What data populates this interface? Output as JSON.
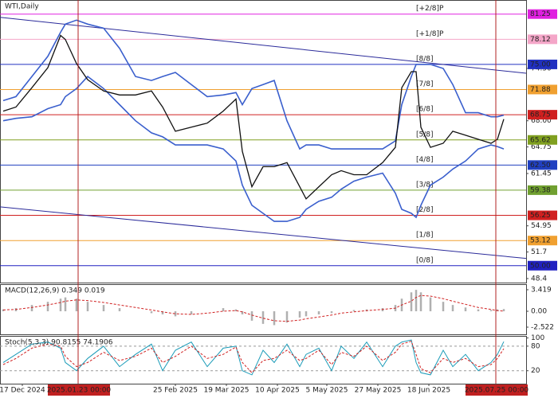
{
  "chart_data": [
    {
      "type": "line",
      "title": "WTI,Daily",
      "xlim": [
        0,
        165
      ],
      "ylim": [
        47.9,
        83.0
      ],
      "xticks": [
        {
          "value": 7,
          "label": "17 Dec 2024"
        },
        {
          "value": 24.5,
          "label": "2025.01.23 00:00",
          "highlight": true
        },
        {
          "value": 55,
          "label": "25 Feb 2025"
        },
        {
          "value": 71,
          "label": "19 Mar 2025"
        },
        {
          "value": 87,
          "label": "10 Apr 2025"
        },
        {
          "value": 102.5,
          "label": "5 May 2025"
        },
        {
          "value": 118.5,
          "label": "27 May 2025"
        },
        {
          "value": 134.5,
          "label": "18 Jun 2025"
        },
        {
          "value": 155.5,
          "label": "2025.07.25 00:00",
          "highlight": true
        }
      ],
      "yticks": [
        {
          "value": 74.5,
          "label": "74.50"
        },
        {
          "value": 68,
          "label": "68.00"
        },
        64.75,
        61.45,
        54.95,
        51.7,
        48.4
      ],
      "levels": [
        {
          "value": 81.25,
          "axis_label": "81.25",
          "label": "[+2/8]P",
          "color": "#e020e0"
        },
        {
          "value": 78.12,
          "axis_label": "78.12",
          "label": "[+1/8]P",
          "color": "#f4a6c8"
        },
        {
          "value": 75,
          "axis_label": "75.00",
          "label": "[8/8]",
          "color": "#2030c0"
        },
        {
          "value": 71.88,
          "axis_label": "71.88",
          "label": "[7/8]",
          "color": "#f0a030"
        },
        {
          "value": 68.75,
          "axis_label": "68.75",
          "label": "[6/8]",
          "color": "#d02020"
        },
        {
          "value": 65.62,
          "axis_label": "65.62",
          "label": "[5/8]",
          "color": "#80a020"
        },
        {
          "value": 62.5,
          "axis_label": "62.50",
          "label": "[4/8]",
          "color": "#2040c0"
        },
        {
          "value": 59.38,
          "axis_label": "59.38",
          "label": "[3/8]",
          "color": "#70a030"
        },
        {
          "value": 56.25,
          "axis_label": "56.25",
          "label": "[2/8]",
          "color": "#d02020"
        },
        {
          "value": 53.12,
          "axis_label": "53.12",
          "label": "[1/8]",
          "color": "#f0a030"
        },
        {
          "value": 50,
          "axis_label": "50.00",
          "label": "[0/8]",
          "color": "#2020c0"
        }
      ],
      "trendlines": [
        {
          "x": [
            0,
            165
          ],
          "y": [
            80.85,
            73.9
          ],
          "color": "#2a2a9a"
        },
        {
          "x": [
            0,
            165
          ],
          "y": [
            57.3,
            50.9
          ],
          "color": "#2a2a9a"
        }
      ],
      "x": [
        1,
        5,
        10,
        15,
        19,
        20.5,
        24,
        27.5,
        32.5,
        37.5,
        42.5,
        47.5,
        51,
        55,
        60,
        65,
        70,
        74,
        76,
        79,
        82.5,
        86,
        90,
        94,
        96,
        100,
        104,
        107,
        111,
        115,
        120,
        124,
        126,
        129,
        130.5,
        132,
        135,
        139,
        142,
        146,
        150,
        154,
        156,
        158
      ],
      "series": [
        {
          "name": "Upper band",
          "color": "#3a5fcd",
          "values": [
            70.5,
            71,
            73.5,
            76,
            79,
            80,
            80.5,
            80,
            79.5,
            77,
            73.5,
            73,
            73.5,
            74,
            72.5,
            71,
            71.2,
            71.5,
            70,
            72,
            72.5,
            73,
            68,
            64.5,
            65,
            65,
            64.5,
            64.5,
            64.5,
            64.5,
            64.5,
            65.5,
            70,
            73.5,
            75,
            75,
            75,
            74.5,
            72.5,
            69,
            69,
            68.5,
            68.5,
            68.7
          ]
        },
        {
          "name": "Lower band",
          "color": "#3a5fcd",
          "values": [
            68,
            68.3,
            68.5,
            69.5,
            70,
            71,
            72,
            73.5,
            72,
            70,
            68,
            66.5,
            66,
            65,
            65,
            65,
            64.5,
            63,
            60,
            57.5,
            56.5,
            55.5,
            55.5,
            56,
            57,
            58,
            58.5,
            59.5,
            60.5,
            61,
            61.5,
            59,
            57,
            56.5,
            56,
            57.5,
            60,
            61,
            62,
            63,
            64.5,
            65,
            64.8,
            64.5
          ]
        },
        {
          "name": "Close",
          "color": "#111111",
          "values": [
            69.2,
            69.7,
            72.1,
            74.6,
            78.6,
            78.1,
            75.1,
            73.1,
            71.7,
            71.2,
            71.2,
            71.7,
            69.7,
            66.7,
            67.2,
            67.7,
            69.2,
            70.7,
            64.2,
            59.8,
            62.3,
            62.3,
            62.8,
            59.8,
            58.3,
            59.8,
            61.3,
            61.8,
            61.3,
            61.3,
            62.8,
            64.7,
            72.1,
            74.1,
            74.1,
            67.2,
            64.7,
            65.2,
            66.7,
            66.2,
            65.7,
            65.2,
            65.7,
            68.2
          ]
        }
      ]
    },
    {
      "type": "macd",
      "title": "MACD(12,26,9) 0.349 0.019",
      "xlim": [
        0,
        165
      ],
      "ylim": [
        -3.66,
        4.3
      ],
      "yticks": [
        3.419,
        {
          "value": 0,
          "label": "0.00"
        },
        -2.522
      ],
      "x": [
        1,
        5,
        10,
        15,
        19,
        20.5,
        24,
        27.5,
        32.5,
        37.5,
        42.5,
        47.5,
        51,
        55,
        60,
        65,
        70,
        74,
        76,
        79,
        82.5,
        86,
        90,
        94,
        96,
        100,
        104,
        107,
        111,
        115,
        120,
        124,
        126,
        129,
        130.5,
        132,
        135,
        139,
        142,
        146,
        150,
        154,
        156,
        158
      ],
      "series": [
        {
          "name": "MACD",
          "type": "bar",
          "color": "#b0b0b0",
          "values": [
            0.3,
            0.5,
            1,
            1.5,
            2,
            2.2,
            2,
            1.5,
            1,
            0.5,
            0,
            -0.3,
            -0.5,
            -0.8,
            -0.5,
            0,
            0.5,
            0.3,
            -0.5,
            -1.5,
            -2,
            -2.2,
            -1.8,
            -1,
            -0.8,
            -0.5,
            -0.3,
            0,
            0.2,
            0.3,
            0.5,
            1,
            2,
            3,
            3.4,
            3,
            2.2,
            1.5,
            1,
            0.6,
            0.3,
            0.2,
            0.3,
            0.35
          ]
        },
        {
          "name": "Signal",
          "type": "dashed",
          "color": "#d02020",
          "values": [
            0.2,
            0.3,
            0.6,
            1,
            1.4,
            1.6,
            1.8,
            1.7,
            1.4,
            1,
            0.6,
            0.2,
            -0.1,
            -0.4,
            -0.5,
            -0.3,
            0,
            0.1,
            -0.1,
            -0.6,
            -1.1,
            -1.5,
            -1.6,
            -1.4,
            -1.2,
            -0.9,
            -0.6,
            -0.3,
            -0.1,
            0.1,
            0.3,
            0.5,
            1,
            1.6,
            2.2,
            2.5,
            2.4,
            2,
            1.6,
            1.1,
            0.6,
            0.3,
            0.1,
            0.02
          ]
        }
      ]
    },
    {
      "type": "stoch",
      "title": "Stoch(5,3,3) 90.8155 74.1906",
      "xlim": [
        0,
        165
      ],
      "ylim": [
        -11.6,
        105
      ],
      "yticks": [
        100,
        80,
        20
      ],
      "levels": [
        80,
        20
      ],
      "x": [
        1,
        5,
        10,
        15,
        19,
        20.5,
        24,
        27.5,
        32.5,
        37.5,
        42.5,
        47.5,
        51,
        55,
        60,
        65,
        70,
        74,
        76,
        79,
        82.5,
        86,
        90,
        94,
        96,
        100,
        104,
        107,
        111,
        115,
        120,
        124,
        126,
        129,
        130.5,
        132,
        135,
        139,
        142,
        146,
        150,
        154,
        156,
        158
      ],
      "series": [
        {
          "name": "%K",
          "type": "line",
          "color": "#1a9bb8",
          "values": [
            40,
            60,
            85,
            90,
            75,
            40,
            20,
            50,
            80,
            30,
            60,
            85,
            20,
            70,
            90,
            30,
            75,
            80,
            20,
            10,
            70,
            40,
            85,
            30,
            60,
            75,
            20,
            80,
            50,
            90,
            30,
            80,
            90,
            95,
            40,
            15,
            10,
            70,
            30,
            60,
            20,
            40,
            60,
            91
          ]
        },
        {
          "name": "%D",
          "type": "dashed",
          "color": "#d02020",
          "values": [
            35,
            50,
            75,
            85,
            80,
            55,
            30,
            40,
            65,
            45,
            55,
            75,
            40,
            55,
            80,
            50,
            60,
            78,
            40,
            15,
            45,
            50,
            70,
            45,
            50,
            70,
            35,
            65,
            55,
            80,
            45,
            65,
            85,
            92,
            60,
            25,
            15,
            50,
            40,
            50,
            30,
            35,
            50,
            74
          ]
        }
      ]
    }
  ]
}
